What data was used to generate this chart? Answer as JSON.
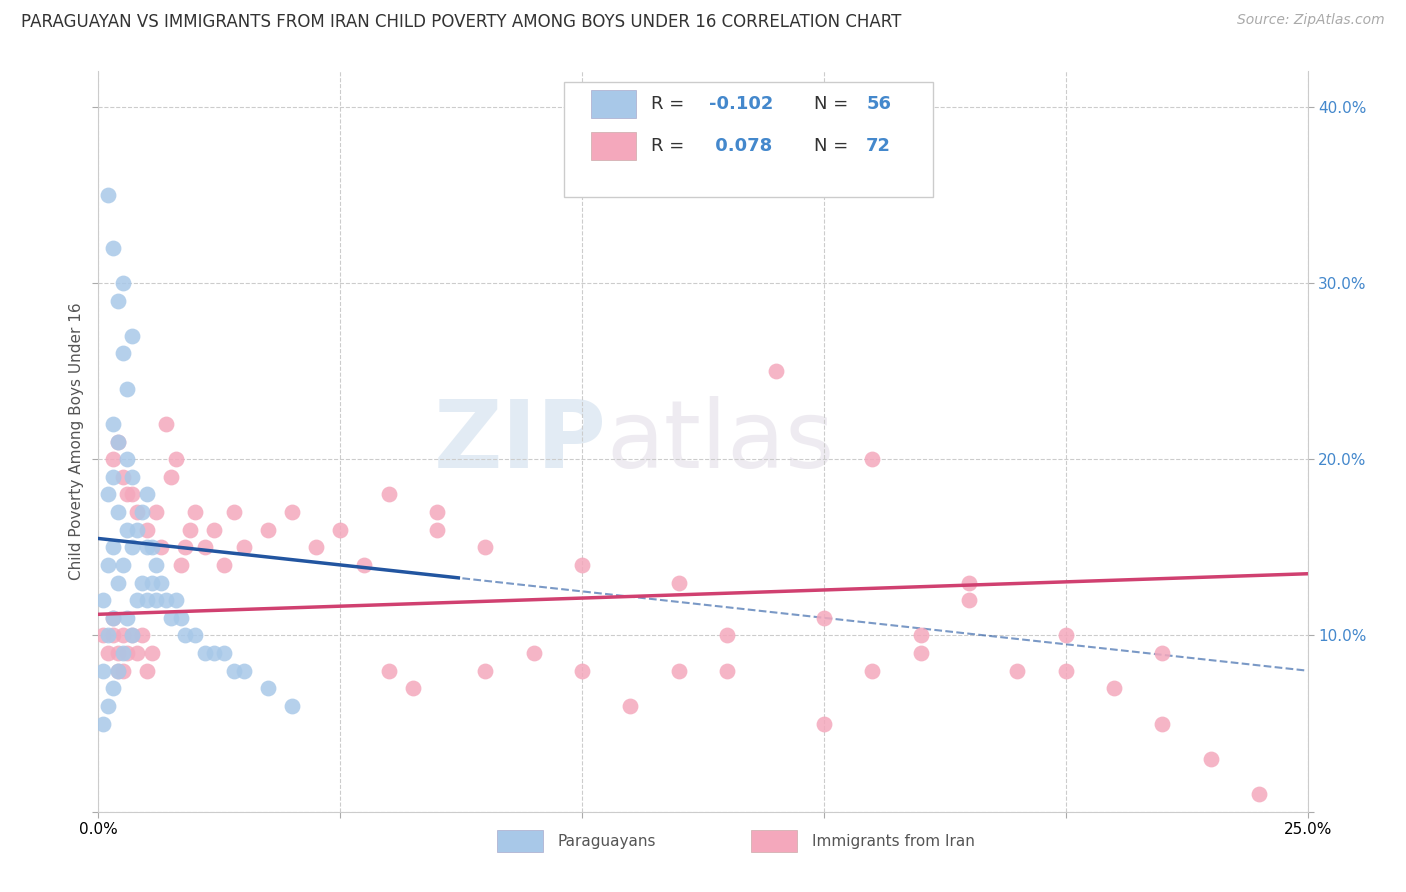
{
  "title": "PARAGUAYAN VS IMMIGRANTS FROM IRAN CHILD POVERTY AMONG BOYS UNDER 16 CORRELATION CHART",
  "source": "Source: ZipAtlas.com",
  "ylabel": "Child Poverty Among Boys Under 16",
  "xlim": [
    0.0,
    0.25
  ],
  "ylim": [
    0.0,
    0.42
  ],
  "blue_color": "#a8c8e8",
  "pink_color": "#f4a8bc",
  "blue_line_color": "#2255a0",
  "pink_line_color": "#d04070",
  "watermark_zip": "ZIP",
  "watermark_atlas": "atlas",
  "legend_r1": "R = -0.102",
  "legend_n1": "N = 56",
  "legend_r2": "R =  0.078",
  "legend_n2": "N = 72",
  "r_color": "#4488cc",
  "label_bottom1": "Paraguayans",
  "label_bottom2": "Immigrants from Iran",
  "paraguayan_x": [
    0.001,
    0.001,
    0.001,
    0.002,
    0.002,
    0.002,
    0.002,
    0.003,
    0.003,
    0.003,
    0.003,
    0.003,
    0.004,
    0.004,
    0.004,
    0.004,
    0.005,
    0.005,
    0.005,
    0.006,
    0.006,
    0.006,
    0.007,
    0.007,
    0.007,
    0.008,
    0.008,
    0.009,
    0.009,
    0.01,
    0.01,
    0.01,
    0.011,
    0.011,
    0.012,
    0.012,
    0.013,
    0.014,
    0.015,
    0.016,
    0.017,
    0.018,
    0.02,
    0.022,
    0.024,
    0.026,
    0.028,
    0.03,
    0.035,
    0.04,
    0.002,
    0.003,
    0.004,
    0.005,
    0.006,
    0.007
  ],
  "paraguayan_y": [
    0.05,
    0.08,
    0.12,
    0.06,
    0.1,
    0.14,
    0.18,
    0.07,
    0.11,
    0.15,
    0.19,
    0.22,
    0.08,
    0.13,
    0.17,
    0.21,
    0.09,
    0.14,
    0.3,
    0.11,
    0.16,
    0.2,
    0.1,
    0.15,
    0.19,
    0.12,
    0.16,
    0.13,
    0.17,
    0.12,
    0.15,
    0.18,
    0.13,
    0.15,
    0.12,
    0.14,
    0.13,
    0.12,
    0.11,
    0.12,
    0.11,
    0.1,
    0.1,
    0.09,
    0.09,
    0.09,
    0.08,
    0.08,
    0.07,
    0.06,
    0.35,
    0.32,
    0.29,
    0.26,
    0.24,
    0.27
  ],
  "iran_x": [
    0.001,
    0.002,
    0.003,
    0.003,
    0.004,
    0.004,
    0.005,
    0.005,
    0.006,
    0.006,
    0.007,
    0.007,
    0.008,
    0.008,
    0.009,
    0.01,
    0.01,
    0.011,
    0.012,
    0.013,
    0.014,
    0.015,
    0.016,
    0.017,
    0.018,
    0.019,
    0.02,
    0.022,
    0.024,
    0.026,
    0.028,
    0.03,
    0.035,
    0.04,
    0.045,
    0.05,
    0.055,
    0.06,
    0.065,
    0.07,
    0.08,
    0.09,
    0.1,
    0.11,
    0.12,
    0.13,
    0.14,
    0.15,
    0.16,
    0.17,
    0.18,
    0.19,
    0.2,
    0.21,
    0.22,
    0.23,
    0.003,
    0.004,
    0.005,
    0.06,
    0.07,
    0.08,
    0.1,
    0.12,
    0.13,
    0.15,
    0.16,
    0.17,
    0.18,
    0.2,
    0.22,
    0.24
  ],
  "iran_y": [
    0.1,
    0.09,
    0.11,
    0.2,
    0.08,
    0.21,
    0.1,
    0.19,
    0.09,
    0.18,
    0.1,
    0.18,
    0.09,
    0.17,
    0.1,
    0.08,
    0.16,
    0.09,
    0.17,
    0.15,
    0.22,
    0.19,
    0.2,
    0.14,
    0.15,
    0.16,
    0.17,
    0.15,
    0.16,
    0.14,
    0.17,
    0.15,
    0.16,
    0.17,
    0.15,
    0.16,
    0.14,
    0.08,
    0.07,
    0.17,
    0.08,
    0.09,
    0.08,
    0.06,
    0.08,
    0.08,
    0.25,
    0.05,
    0.08,
    0.09,
    0.12,
    0.08,
    0.08,
    0.07,
    0.05,
    0.03,
    0.1,
    0.09,
    0.08,
    0.18,
    0.16,
    0.15,
    0.14,
    0.13,
    0.1,
    0.11,
    0.2,
    0.1,
    0.13,
    0.1,
    0.09,
    0.01
  ]
}
